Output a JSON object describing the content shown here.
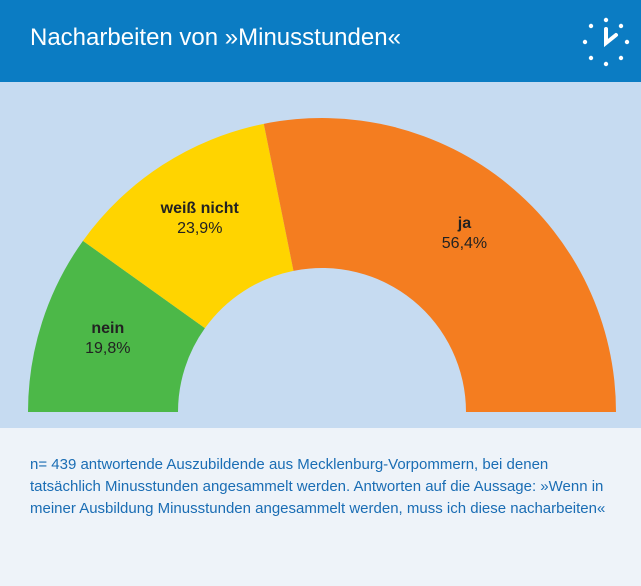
{
  "chart_data": {
    "type": "pie",
    "shape": "half-donut",
    "title": "Nacharbeiten von »Minusstunden«",
    "categories": [
      "nein",
      "weiß nicht",
      "ja"
    ],
    "values": [
      19.8,
      23.9,
      56.4
    ],
    "value_labels": [
      "19,8%",
      "23,9%",
      "56,4%"
    ],
    "colors": [
      "#4cb848",
      "#ffd400",
      "#f47d20"
    ],
    "note": "n= 439 antwortende Auszubildende aus Mecklenburg-Vorpommern, bei denen tatsächlich Minusstunden angesammelt werden. Antworten auf die Aussage: »Wenn in meiner Ausbildung Minusstunden angesammelt werden, muss ich diese nacharbeiten«"
  }
}
